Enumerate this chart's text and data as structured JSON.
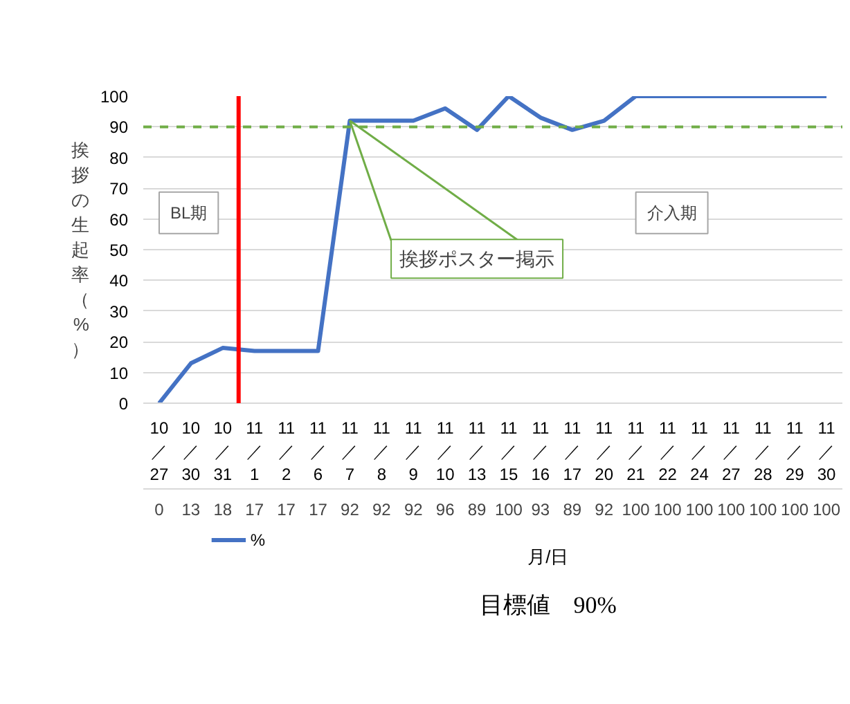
{
  "chart_data": {
    "type": "line",
    "categories": [
      "10／27",
      "10／30",
      "10／31",
      "11／1",
      "11／2",
      "11／6",
      "11／7",
      "11／8",
      "11／9",
      "11／10",
      "11／13",
      "11／15",
      "11／16",
      "11／17",
      "11／20",
      "11／21",
      "11／22",
      "11／24",
      "11／27",
      "11／28",
      "11／29",
      "11／30"
    ],
    "series": [
      {
        "name": "%",
        "color": "#4472c4",
        "values": [
          0,
          13,
          18,
          17,
          17,
          17,
          92,
          92,
          92,
          96,
          89,
          100,
          93,
          89,
          92,
          100,
          100,
          100,
          100,
          100,
          100,
          100
        ]
      }
    ],
    "ylim": [
      0,
      100
    ],
    "yticks": [
      0,
      10,
      20,
      30,
      40,
      50,
      60,
      70,
      80,
      90,
      100
    ],
    "ylabel": "挨拶の生起率（%）",
    "xlabel": "月/日",
    "grid": "y",
    "legend": "bottom",
    "data_labels": true,
    "marker": "none",
    "line_style": "solid",
    "ref_lines": [
      {
        "axis": "y",
        "value": 90,
        "color": "#70ad47",
        "line_style": "dashed"
      },
      {
        "axis": "x",
        "value": "11／1",
        "color": "#ff0000",
        "line_style": "solid"
      }
    ],
    "annotations": [
      "BL期",
      "介入期",
      {
        "text": "挨拶ポスター掲示",
        "x": "11／7",
        "y": 92
      },
      "目標値　90%"
    ]
  }
}
